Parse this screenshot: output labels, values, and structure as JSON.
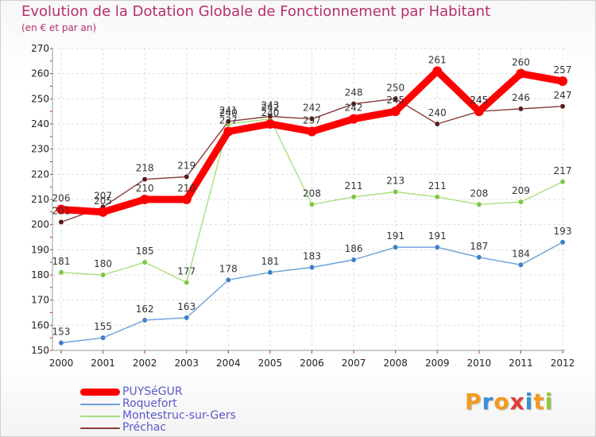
{
  "title": "Evolution de la Dotation Globale de Fonctionnement par Habitant",
  "subtitle": "(en € et par an)",
  "logo": {
    "letters": [
      "P",
      "r",
      "o",
      "x",
      "i",
      "t",
      "i"
    ],
    "colors": [
      "#f39a1e",
      "#3d8ed8",
      "#f39a1e",
      "#e23a3a",
      "#3d8ed8",
      "#f39a1e",
      "#8fc93a"
    ]
  },
  "chart_data": {
    "type": "line",
    "title": "Evolution de la Dotation Globale de Fonctionnement par Habitant",
    "subtitle": "(en € et par an)",
    "x": [
      "2000",
      "2001",
      "2002",
      "2003",
      "2004",
      "2005",
      "2006",
      "2007",
      "2008",
      "2009",
      "2010",
      "2011",
      "2012"
    ],
    "ylim": [
      150,
      270
    ],
    "yticks": [
      150,
      160,
      170,
      180,
      190,
      200,
      210,
      220,
      230,
      240,
      250,
      260,
      270
    ],
    "grid": true,
    "legend_position": "bottom-left",
    "series": [
      {
        "name": "Roquefort",
        "color": "#6a9fd8",
        "marker": "#3a80c8",
        "values": [
          153,
          155,
          162,
          163,
          178,
          181,
          183,
          186,
          191,
          191,
          187,
          184,
          193
        ]
      },
      {
        "name": "Montestruc-sur-Gers",
        "color": "#a6e07a",
        "marker": "#7cc842",
        "values": [
          181,
          180,
          185,
          177,
          240,
          242,
          208,
          211,
          213,
          211,
          208,
          209,
          217
        ]
      },
      {
        "name": "Préchac",
        "color": "#8b3a3a",
        "marker": "#5a1a1a",
        "values": [
          201,
          207,
          218,
          219,
          241,
          243,
          242,
          248,
          250,
          240,
          245,
          246,
          247
        ]
      },
      {
        "name": "PUYSéGUR",
        "color": "#ff0000",
        "marker": "#ff0000",
        "thick": true,
        "values": [
          206,
          205,
          210,
          210,
          237,
          240,
          237,
          242,
          245,
          261,
          245,
          260,
          257
        ]
      }
    ],
    "legend_order": [
      "PUYSéGUR",
      "Roquefort",
      "Montestruc-sur-Gers",
      "Préchac"
    ]
  }
}
